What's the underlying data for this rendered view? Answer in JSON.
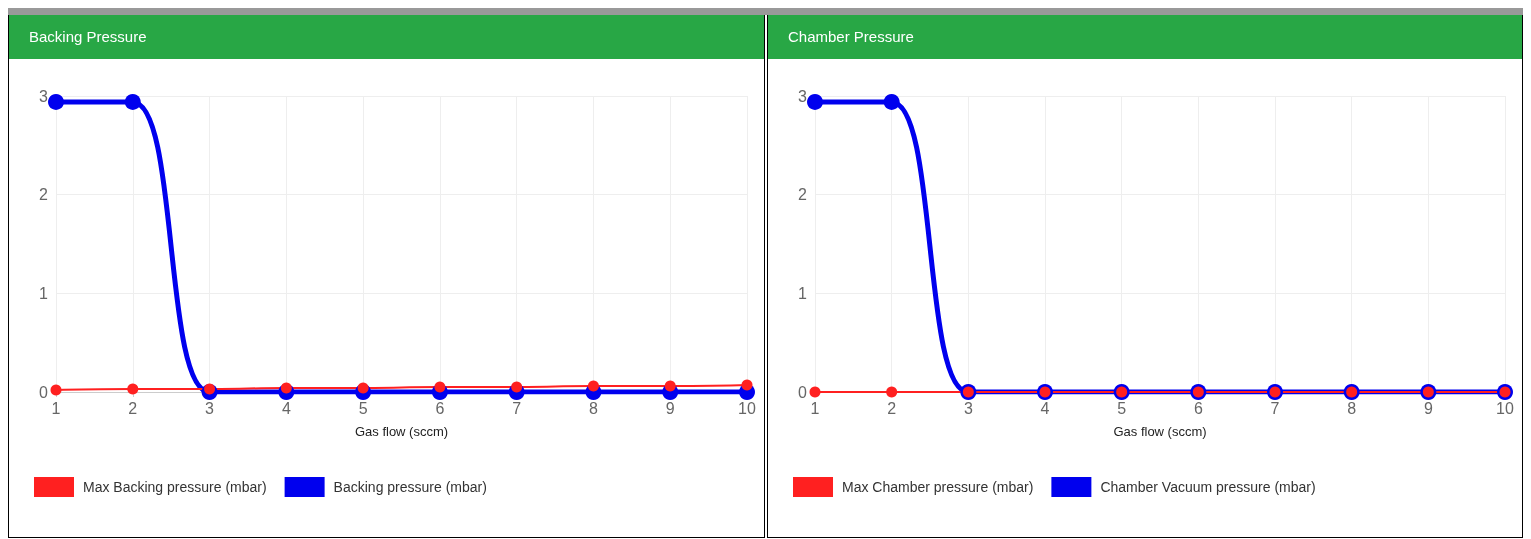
{
  "chart_data": [
    {
      "type": "line",
      "title": "Backing Pressure",
      "xlabel": "Gas flow (sccm)",
      "x": [
        1,
        2,
        3,
        4,
        5,
        6,
        7,
        8,
        9,
        10
      ],
      "xlim": [
        1,
        10
      ],
      "xticks": [
        1,
        2,
        3,
        4,
        5,
        6,
        7,
        8,
        9,
        10
      ],
      "ylim": [
        0,
        3
      ],
      "yticks": [
        0,
        1,
        2,
        3
      ],
      "grid": true,
      "legend": "bottom left",
      "marker": "circle",
      "line_style": "solid",
      "series": [
        {
          "name": "Backing pressure (mbar)",
          "color": "#0000ee",
          "values": [
            2.94,
            2.94,
            0,
            0,
            0,
            0,
            0,
            0,
            0,
            0
          ]
        },
        {
          "name": "Max Backing pressure (mbar)",
          "color": "#ff2020",
          "values": [
            0.02,
            0.03,
            0.03,
            0.04,
            0.04,
            0.05,
            0.05,
            0.06,
            0.06,
            0.07
          ]
        }
      ]
    },
    {
      "type": "line",
      "title": "Chamber Pressure",
      "xlabel": "Gas flow (sccm)",
      "x": [
        1,
        2,
        3,
        4,
        5,
        6,
        7,
        8,
        9,
        10
      ],
      "xlim": [
        1,
        10
      ],
      "xticks": [
        1,
        2,
        3,
        4,
        5,
        6,
        7,
        8,
        9,
        10
      ],
      "ylim": [
        0,
        3
      ],
      "yticks": [
        0,
        1,
        2,
        3
      ],
      "grid": true,
      "legend": "bottom left",
      "marker": "circle",
      "line_style": "solid",
      "series": [
        {
          "name": "Chamber Vacuum pressure (mbar)",
          "color": "#0000ee",
          "values": [
            2.94,
            2.94,
            0,
            0,
            0,
            0,
            0,
            0,
            0,
            0
          ]
        },
        {
          "name": "Max Chamber pressure (mbar)",
          "color": "#ff2020",
          "values": [
            0,
            0,
            0,
            0,
            0,
            0,
            0,
            0,
            0,
            0
          ]
        }
      ]
    }
  ]
}
